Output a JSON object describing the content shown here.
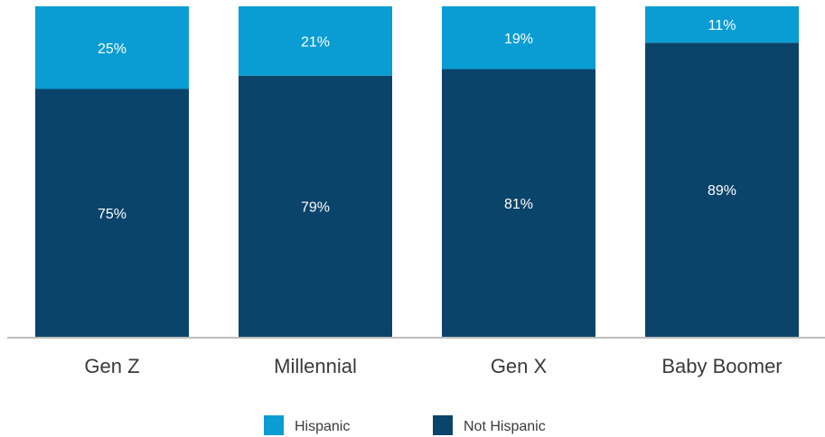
{
  "chart_data": {
    "type": "bar",
    "stacked": true,
    "percent_stacked": true,
    "categories": [
      "Gen Z",
      "Millennial",
      "Gen X",
      "Baby Boomer"
    ],
    "series": [
      {
        "name": "Not Hispanic",
        "color": "#0b446b",
        "values": [
          75,
          79,
          81,
          89
        ],
        "labels": [
          "75%",
          "79%",
          "81%",
          "89%"
        ]
      },
      {
        "name": "Hispanic",
        "color": "#0a9dd4",
        "values": [
          25,
          21,
          19,
          11
        ],
        "labels": [
          "25%",
          "21%",
          "19%",
          "11%"
        ]
      }
    ],
    "ylim": [
      0,
      100
    ],
    "grid": false,
    "legend_position": "bottom-center",
    "legend": [
      {
        "name": "Hispanic",
        "color": "#0a9dd4"
      },
      {
        "name": "Not Hispanic",
        "color": "#0b446b"
      }
    ],
    "axis_color": "#bdbdbd"
  }
}
